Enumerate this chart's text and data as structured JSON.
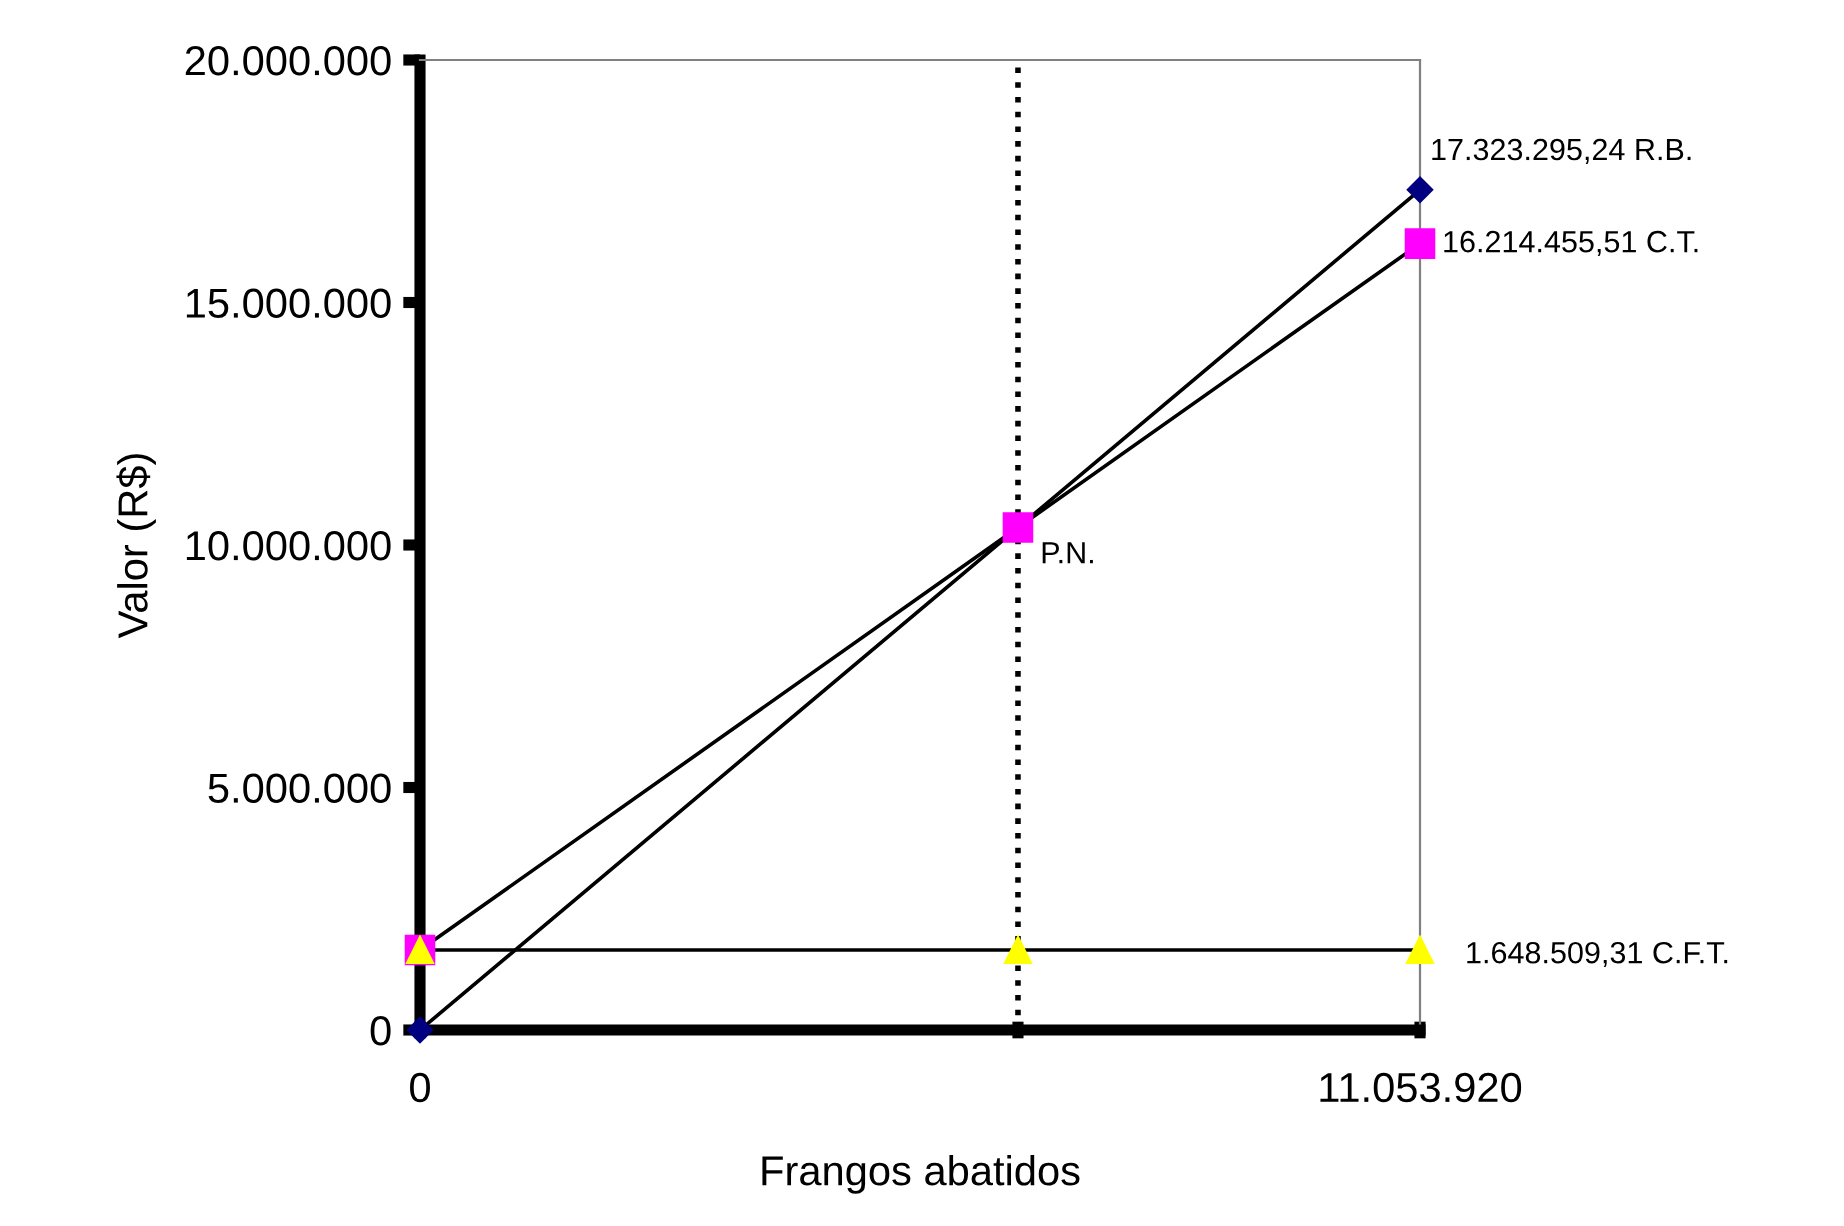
{
  "chart_data": {
    "type": "line",
    "xlabel": "Frangos abatidos",
    "ylabel": "Valor (R$)",
    "x": [
      0,
      6610000,
      11053920
    ],
    "series": [
      {
        "color": "#000080",
        "marker": "diamond",
        "values": [
          0,
          10360000,
          17323295.24
        ]
      },
      {
        "color": "#ff00ff",
        "marker": "square",
        "values": [
          1648509.31,
          10360000,
          16214455.51
        ]
      },
      {
        "color": "#ffff00",
        "marker": "triangle",
        "values": [
          1648509.31,
          1648509.31,
          1648509.31
        ]
      }
    ],
    "xlim": [
      0,
      11053920
    ],
    "xticks": [
      0,
      {
        "value": 6610000,
        "label": null
      },
      {
        "value": 11053920,
        "label": "11.053.920"
      }
    ],
    "ylim": [
      0,
      20000000
    ],
    "yticks": [
      {
        "value": 0,
        "label": "0"
      },
      {
        "value": 5000000,
        "label": "5.000.000"
      },
      {
        "value": 10000000,
        "label": "10.000.000"
      },
      {
        "value": 15000000,
        "label": "15.000.000"
      },
      {
        "value": 20000000,
        "label": "20.000.000"
      }
    ],
    "ref_lines": [
      {
        "axis": "x",
        "value": 6610000,
        "line_style": "dotted",
        "color": "#000000"
      }
    ],
    "annotations": [
      "17.323.295,24 R.B.",
      "16.214.455,51 C.T.",
      {
        "text": "P.N.",
        "x": 6610000,
        "y": 10360000
      },
      "1.648.509,31 C.F.T."
    ],
    "grid": false,
    "legend": false
  }
}
